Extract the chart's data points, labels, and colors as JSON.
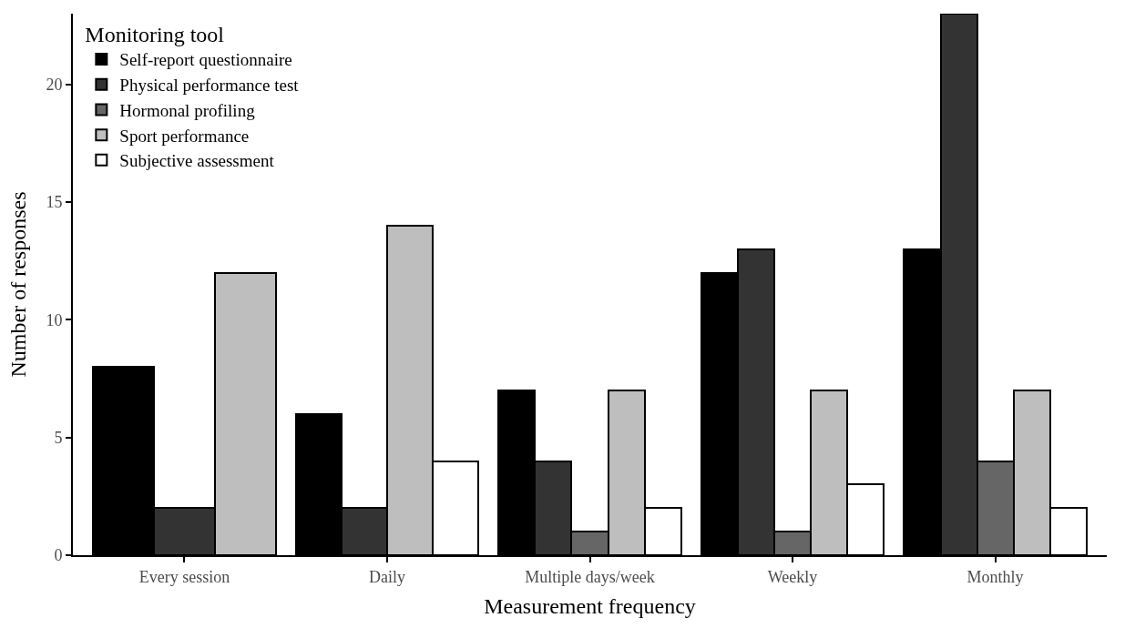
{
  "chart_data": {
    "type": "bar",
    "xlabel": "Measurement frequency",
    "ylabel": "Number of responses",
    "legend_title": "Monitoring tool",
    "categories": [
      "Every session",
      "Daily",
      "Multiple days/week",
      "Weekly",
      "Monthly"
    ],
    "series": [
      {
        "name": "Self-report questionnaire",
        "color": "#000000",
        "values": [
          8,
          6,
          7,
          12,
          13
        ]
      },
      {
        "name": "Physical performance test",
        "color": "#333333",
        "values": [
          2,
          2,
          4,
          13,
          23
        ]
      },
      {
        "name": "Hormonal profiling",
        "color": "#666666",
        "values": [
          null,
          null,
          1,
          1,
          4
        ]
      },
      {
        "name": "Sport performance",
        "color": "#bebebe",
        "values": [
          12,
          14,
          7,
          7,
          7
        ]
      },
      {
        "name": "Subjective assessment",
        "color": "#ffffff",
        "values": [
          null,
          4,
          2,
          3,
          2
        ]
      }
    ],
    "ylim": [
      0,
      23
    ],
    "yticks": [
      0,
      5,
      10,
      15,
      20
    ],
    "legend": "top left"
  }
}
